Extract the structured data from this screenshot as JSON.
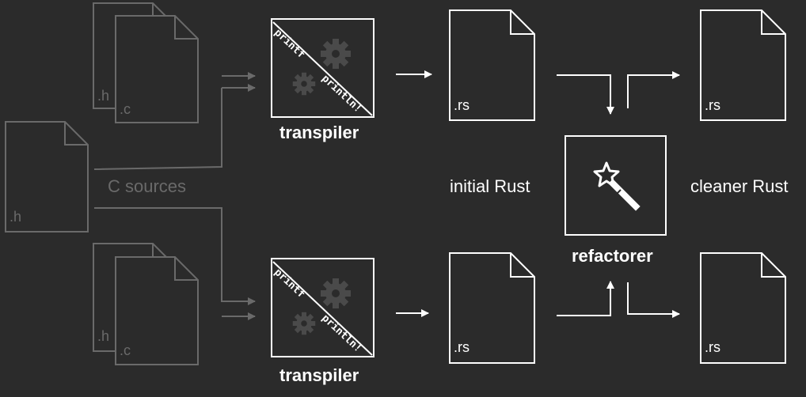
{
  "sources": {
    "top_h_ext": ".h",
    "top_c_ext": ".c",
    "shared_h_ext": ".h",
    "bottom_h_ext": ".h",
    "bottom_c_ext": ".c",
    "caption": "C sources"
  },
  "transpiler": {
    "title_top": "transpiler",
    "title_bottom": "transpiler",
    "in_text": "printf",
    "out_text": "println!"
  },
  "outputs": {
    "initial_top_ext": ".rs",
    "initial_bottom_ext": ".rs",
    "initial_caption": "initial Rust",
    "clean_top_ext": ".rs",
    "clean_bottom_ext": ".rs",
    "clean_caption": "cleaner Rust"
  },
  "refactorer": {
    "title": "refactorer",
    "icon": "magic-wand-icon"
  },
  "colors": {
    "background": "#2b2b2b",
    "primary": "#ffffff",
    "muted": "#6a6a6a"
  }
}
